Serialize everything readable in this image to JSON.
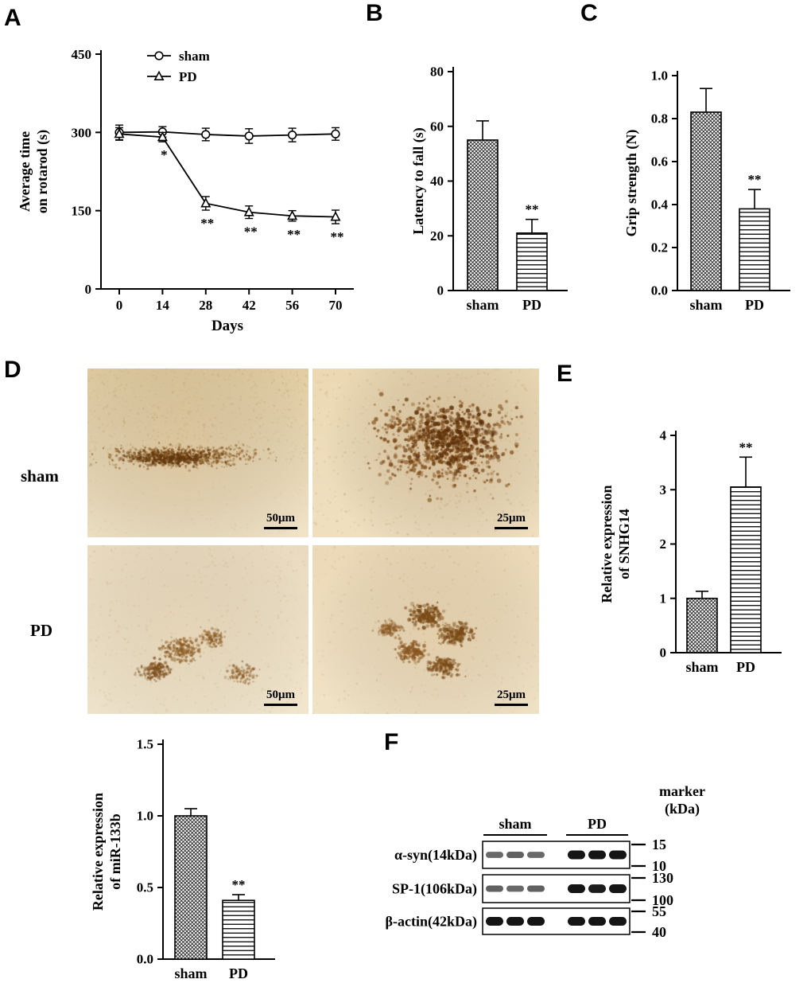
{
  "figure": {
    "panel_letters": {
      "a": "A",
      "b": "B",
      "c": "C",
      "d": "D",
      "e": "E",
      "f": "F"
    }
  },
  "chart_data": [
    {
      "id": "rotarod",
      "type": "line",
      "xlabel": "Days",
      "ylabel": "Average time\non rotarod (s)",
      "x": [
        0,
        14,
        28,
        42,
        56,
        70
      ],
      "xtick_labels": [
        "0",
        "14",
        "28",
        "42",
        "56",
        "70"
      ],
      "ylim": [
        0,
        450
      ],
      "yticks": [
        "0",
        "150",
        "300",
        "450"
      ],
      "legend_position": "top-inside",
      "series": [
        {
          "name": "sham",
          "marker": "circle",
          "values": [
            300,
            301,
            296,
            293,
            295,
            297
          ],
          "errors": [
            14,
            10,
            12,
            14,
            13,
            12
          ]
        },
        {
          "name": "PD",
          "marker": "triangle",
          "values": [
            297,
            291,
            164,
            147,
            140,
            138
          ],
          "errors": [
            12,
            9,
            13,
            12,
            10,
            13
          ]
        }
      ],
      "annotations": [
        {
          "series": "PD",
          "x": 14,
          "text": "*"
        },
        {
          "series": "PD",
          "x": 28,
          "text": "**"
        },
        {
          "series": "PD",
          "x": 42,
          "text": "**"
        },
        {
          "series": "PD",
          "x": 56,
          "text": "**"
        },
        {
          "series": "PD",
          "x": 70,
          "text": "**"
        }
      ]
    },
    {
      "id": "latency",
      "type": "bar",
      "ylabel": "Latency to fall (s)",
      "categories": [
        "sham",
        "PD"
      ],
      "values": [
        55,
        21
      ],
      "errors": [
        7,
        5
      ],
      "sig": [
        "",
        "**"
      ],
      "ylim": [
        0,
        80
      ],
      "yticks": [
        "0",
        "20",
        "40",
        "60",
        "80"
      ],
      "patterns": [
        "crosshatch",
        "hlines"
      ]
    },
    {
      "id": "grip",
      "type": "bar",
      "ylabel": "Grip strength (N)",
      "categories": [
        "sham",
        "PD"
      ],
      "values": [
        0.83,
        0.38
      ],
      "errors": [
        0.11,
        0.09
      ],
      "sig": [
        "",
        "**"
      ],
      "ylim": [
        0,
        1.0
      ],
      "yticks": [
        "0.0",
        "0.2",
        "0.4",
        "0.6",
        "0.8",
        "1.0"
      ],
      "patterns": [
        "crosshatch",
        "hlines"
      ]
    },
    {
      "id": "snhg14",
      "type": "bar",
      "ylabel": "Relative expression\nof SNHG14",
      "categories": [
        "sham",
        "PD"
      ],
      "values": [
        1.0,
        3.05
      ],
      "errors": [
        0.13,
        0.55
      ],
      "sig": [
        "",
        "**"
      ],
      "ylim": [
        0,
        4
      ],
      "yticks": [
        "0",
        "1",
        "2",
        "3",
        "4"
      ],
      "patterns": [
        "crosshatch",
        "hlines"
      ]
    },
    {
      "id": "mir133b",
      "type": "bar",
      "ylabel": "Relative expression\nof miR-133b",
      "categories": [
        "sham",
        "PD"
      ],
      "values": [
        1.0,
        0.41
      ],
      "errors": [
        0.05,
        0.04
      ],
      "sig": [
        "",
        "**"
      ],
      "ylim": [
        0,
        1.5
      ],
      "yticks": [
        "0.0",
        "0.5",
        "1.0",
        "1.5"
      ],
      "patterns": [
        "crosshatch",
        "hlines"
      ]
    }
  ],
  "panel_d": {
    "row_labels": [
      "sham",
      "PD"
    ],
    "images": [
      {
        "key": "sham50",
        "scale_label": "50μm"
      },
      {
        "key": "sham25",
        "scale_label": "25μm"
      },
      {
        "key": "pd50",
        "scale_label": "50μm"
      },
      {
        "key": "pd25",
        "scale_label": "25μm"
      }
    ]
  },
  "western": {
    "marker_header_line1": "marker",
    "marker_header_line2": "(kDa)",
    "groups": [
      "sham",
      "PD"
    ],
    "lanes_per_group": 3,
    "rows": [
      {
        "label": "α-syn(14kDa)",
        "markers": [
          "15",
          "10"
        ],
        "band_intensities": [
          0.45,
          0.5,
          0.45,
          1,
          1,
          1
        ]
      },
      {
        "label": "SP-1(106kDa)",
        "markers": [
          "130",
          "100"
        ],
        "band_intensities": [
          0.5,
          0.45,
          0.5,
          1,
          0.95,
          1
        ]
      },
      {
        "label": "β-actin(42kDa)",
        "markers": [
          "55",
          "40"
        ],
        "band_intensities": [
          1,
          1,
          1,
          1,
          1,
          1
        ]
      }
    ]
  }
}
